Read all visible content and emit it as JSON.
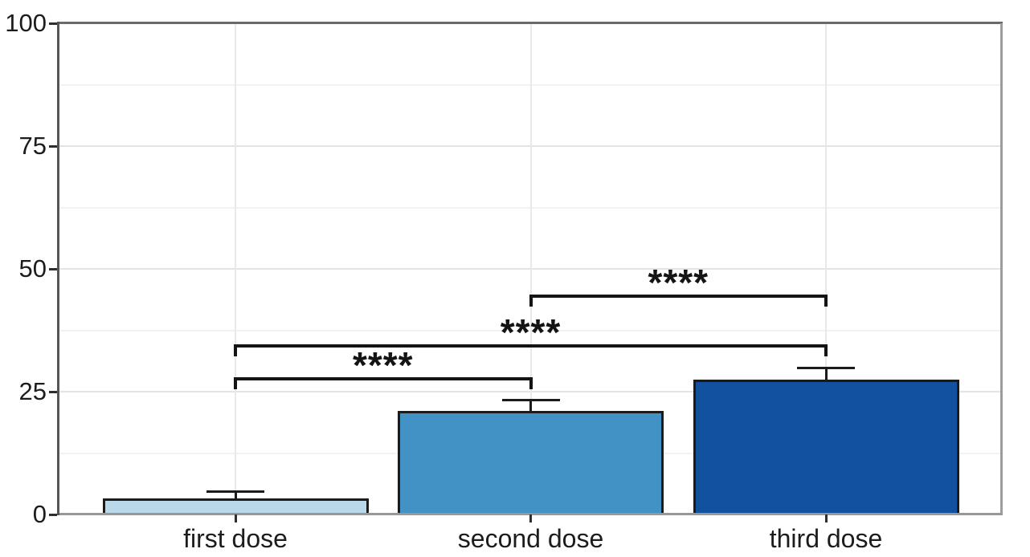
{
  "figure": {
    "background_color": "#ffffff",
    "text_color": "#1c1c1c"
  },
  "chart_data": {
    "type": "bar",
    "title": "",
    "xlabel": "",
    "ylabel": "",
    "categories": [
      "first dose",
      "second dose",
      "third dose"
    ],
    "values": [
      3.3,
      21.1,
      27.5
    ],
    "error_upper": [
      1.3,
      2.2,
      2.4
    ],
    "yticks": [
      0,
      25,
      50,
      75,
      100
    ],
    "ylim": [
      0,
      100
    ],
    "legend_position": "none",
    "grid": "horizontal major every 25 with minor every 12.5; vertical gridline at each category center",
    "bar_colors": [
      "#b9d8ea",
      "#4292c5",
      "#11519e"
    ],
    "bar_outline_color": "#1b1b1b",
    "significance": [
      {
        "between": [
          "first dose",
          "second dose"
        ],
        "label": "****"
      },
      {
        "between": [
          "first dose",
          "third dose"
        ],
        "label": "****"
      },
      {
        "between": [
          "second dose",
          "third dose"
        ],
        "label": "****"
      }
    ]
  }
}
